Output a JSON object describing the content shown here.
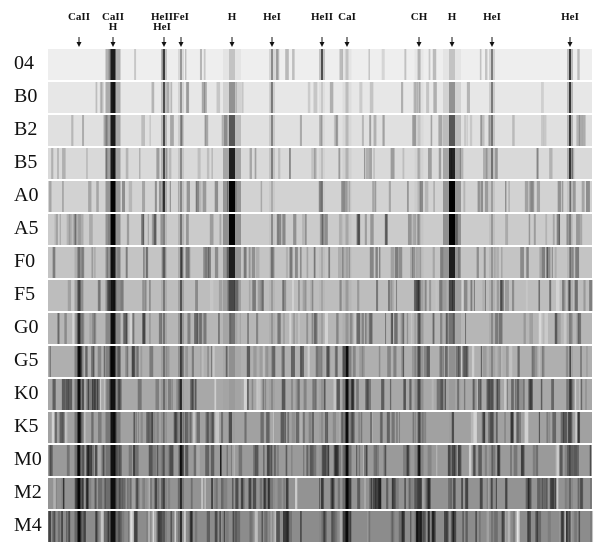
{
  "line_labels": [
    [
      "CaII"
    ],
    [
      "CaII",
      "H"
    ],
    [
      "HeII",
      "HeI"
    ],
    [
      "FeI"
    ],
    [
      "H"
    ],
    [
      "HeI"
    ],
    [
      "HeII"
    ],
    [
      "CaI"
    ],
    [
      "CH"
    ],
    [
      "H"
    ],
    [
      "HeI"
    ],
    [
      "HeI"
    ]
  ],
  "spectral_types": [
    "04",
    "B0",
    "B2",
    "B5",
    "A0",
    "A5",
    "F0",
    "F5",
    "G0",
    "G5",
    "K0",
    "K5",
    "M0",
    "M2",
    "M4"
  ]
}
